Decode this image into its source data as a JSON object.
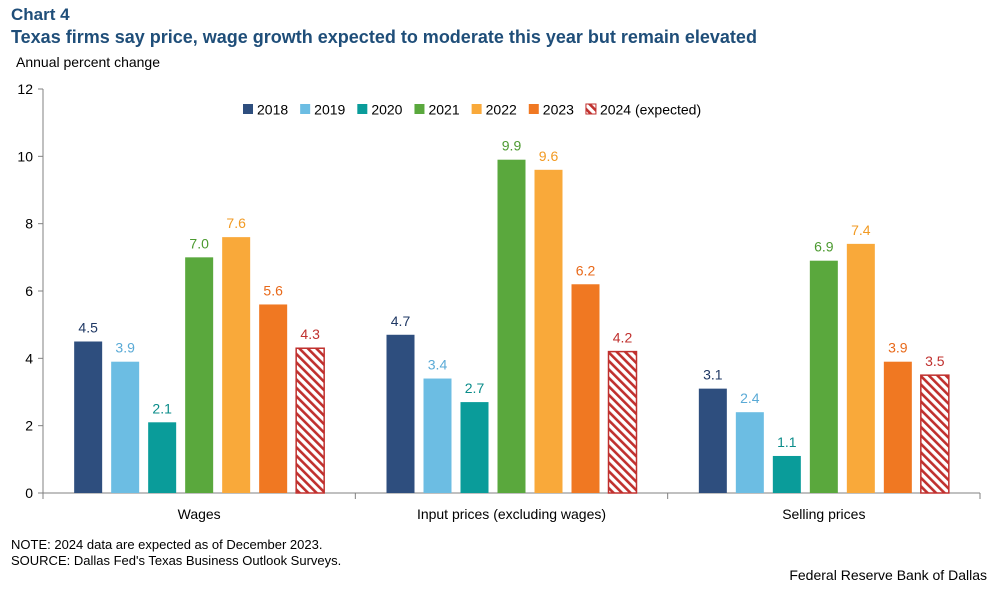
{
  "header": {
    "label": "Chart 4",
    "title": "Texas firms say price, wage growth expected to moderate this year but remain elevated"
  },
  "chart_data": {
    "type": "bar",
    "title": "Texas firms say price, wage growth expected to moderate this year but remain elevated",
    "ylabel": "Annual percent change",
    "xlabel": "",
    "ylim": [
      0,
      12
    ],
    "yticks": [
      0,
      2,
      4,
      6,
      8,
      10,
      12
    ],
    "grid": false,
    "legend_position": "top",
    "categories": [
      "Wages",
      "Input prices (excluding wages)",
      "Selling prices"
    ],
    "series": [
      {
        "name": "2018",
        "values": [
          4.5,
          4.7,
          3.1
        ],
        "color": "#2e4e7e",
        "label_color": "#1f3864",
        "pattern": "solid"
      },
      {
        "name": "2019",
        "values": [
          3.9,
          3.4,
          2.4
        ],
        "color": "#6cbde3",
        "label_color": "#5aaad6",
        "pattern": "solid"
      },
      {
        "name": "2020",
        "values": [
          2.1,
          2.7,
          1.1
        ],
        "color": "#0a9c9a",
        "label_color": "#0a8c8a",
        "pattern": "solid"
      },
      {
        "name": "2021",
        "values": [
          7.0,
          9.9,
          6.9
        ],
        "color": "#5aa83d",
        "label_color": "#4c9a30",
        "pattern": "solid"
      },
      {
        "name": "2022",
        "values": [
          7.6,
          9.6,
          7.4
        ],
        "color": "#f9a93a",
        "label_color": "#f29a22",
        "pattern": "solid"
      },
      {
        "name": "2023",
        "values": [
          5.6,
          6.2,
          3.9
        ],
        "color": "#f07822",
        "label_color": "#e8691a",
        "pattern": "solid"
      },
      {
        "name": "2024 (expected)",
        "values": [
          4.3,
          4.2,
          3.5
        ],
        "color": "#c0302e",
        "label_color": "#c0302e",
        "pattern": "hatch"
      }
    ]
  },
  "footer": {
    "note": "NOTE: 2024 data are expected as of December 2023.",
    "source": "SOURCE: Dallas Fed's Texas Business Outlook Surveys.",
    "credit": "Federal Reserve Bank of Dallas"
  }
}
